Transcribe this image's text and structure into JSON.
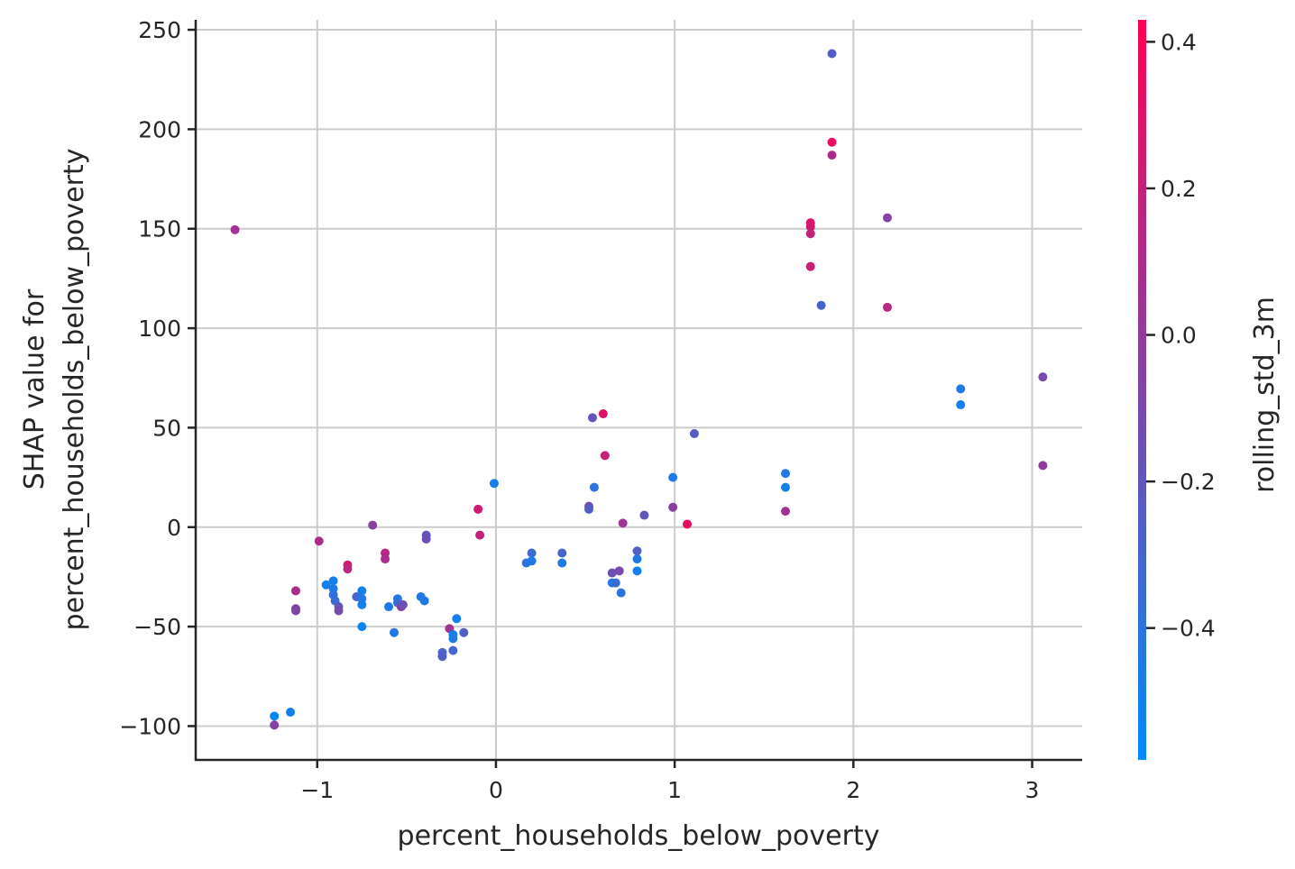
{
  "chart_data": {
    "type": "scatter",
    "title": "",
    "xlabel": "percent_households_below_poverty",
    "ylabel_lines": [
      "SHAP value for",
      "percent_households_below_poverty"
    ],
    "xlim": [
      -1.68,
      3.28
    ],
    "ylim": [
      -117,
      255
    ],
    "x_ticks": [
      -1,
      0,
      1,
      2,
      3
    ],
    "x_tick_labels": [
      "−1",
      "0",
      "1",
      "2",
      "3"
    ],
    "y_ticks": [
      -100,
      -50,
      0,
      50,
      100,
      150,
      200,
      250
    ],
    "y_tick_labels": [
      "−100",
      "−50",
      "0",
      "50",
      "100",
      "150",
      "200",
      "250"
    ],
    "grid": true,
    "colorbar": {
      "label": "rolling_std_3m",
      "range": [
        -0.58,
        0.43
      ],
      "ticks": [
        -0.4,
        -0.2,
        0.0,
        0.2,
        0.4
      ],
      "tick_labels": [
        "−0.4",
        "−0.2",
        "0.0",
        "0.2",
        "0.4"
      ],
      "colors": [
        "#008bfb",
        "#ff0052"
      ]
    },
    "points": [
      {
        "x": -1.46,
        "y": 149.5,
        "c": 0.05
      },
      {
        "x": -1.24,
        "y": -95,
        "c": -0.55
      },
      {
        "x": -1.24,
        "y": -99.5,
        "c": -0.05
      },
      {
        "x": -1.15,
        "y": -93,
        "c": -0.5
      },
      {
        "x": -1.12,
        "y": -32,
        "c": 0.1
      },
      {
        "x": -1.12,
        "y": -41,
        "c": -0.05
      },
      {
        "x": -1.12,
        "y": -42,
        "c": -0.08
      },
      {
        "x": -0.99,
        "y": -7,
        "c": 0.1
      },
      {
        "x": -0.95,
        "y": -29,
        "c": -0.5
      },
      {
        "x": -0.91,
        "y": -27,
        "c": -0.5
      },
      {
        "x": -0.91,
        "y": -31,
        "c": -0.45
      },
      {
        "x": -0.91,
        "y": -34,
        "c": -0.4
      },
      {
        "x": -0.9,
        "y": -37,
        "c": -0.35
      },
      {
        "x": -0.88,
        "y": -40,
        "c": -0.2
      },
      {
        "x": -0.88,
        "y": -42,
        "c": -0.12
      },
      {
        "x": -0.83,
        "y": -19,
        "c": 0.25
      },
      {
        "x": -0.83,
        "y": -21,
        "c": 0.15
      },
      {
        "x": -0.78,
        "y": -35,
        "c": -0.3
      },
      {
        "x": -0.75,
        "y": -32,
        "c": -0.5
      },
      {
        "x": -0.75,
        "y": -36,
        "c": -0.45
      },
      {
        "x": -0.75,
        "y": -39,
        "c": -0.5
      },
      {
        "x": -0.75,
        "y": -50,
        "c": -0.55
      },
      {
        "x": -0.69,
        "y": 1,
        "c": -0.05
      },
      {
        "x": -0.62,
        "y": -13,
        "c": 0.15
      },
      {
        "x": -0.62,
        "y": -16,
        "c": 0.1
      },
      {
        "x": -0.6,
        "y": -40,
        "c": -0.45
      },
      {
        "x": -0.57,
        "y": -53,
        "c": -0.45
      },
      {
        "x": -0.55,
        "y": -36,
        "c": -0.45
      },
      {
        "x": -0.55,
        "y": -38,
        "c": -0.35
      },
      {
        "x": -0.53,
        "y": -40,
        "c": -0.05
      },
      {
        "x": -0.52,
        "y": -39,
        "c": -0.15
      },
      {
        "x": -0.42,
        "y": -35,
        "c": -0.45
      },
      {
        "x": -0.4,
        "y": -37,
        "c": -0.45
      },
      {
        "x": -0.39,
        "y": -4,
        "c": -0.2
      },
      {
        "x": -0.39,
        "y": -6,
        "c": -0.15
      },
      {
        "x": -0.3,
        "y": -63,
        "c": -0.3
      },
      {
        "x": -0.3,
        "y": -65,
        "c": -0.25
      },
      {
        "x": -0.26,
        "y": -51,
        "c": 0.05
      },
      {
        "x": -0.24,
        "y": -54,
        "c": -0.5
      },
      {
        "x": -0.24,
        "y": -56,
        "c": -0.45
      },
      {
        "x": -0.24,
        "y": -62,
        "c": -0.3
      },
      {
        "x": -0.22,
        "y": -46,
        "c": -0.5
      },
      {
        "x": -0.18,
        "y": -53,
        "c": -0.25
      },
      {
        "x": -0.1,
        "y": 9,
        "c": 0.25
      },
      {
        "x": -0.09,
        "y": -4,
        "c": 0.2
      },
      {
        "x": -0.01,
        "y": 22,
        "c": -0.5
      },
      {
        "x": 0.17,
        "y": -18,
        "c": -0.4
      },
      {
        "x": 0.2,
        "y": -13,
        "c": -0.35
      },
      {
        "x": 0.2,
        "y": -17,
        "c": -0.45
      },
      {
        "x": 0.37,
        "y": -13,
        "c": -0.3
      },
      {
        "x": 0.37,
        "y": -18,
        "c": -0.45
      },
      {
        "x": 0.52,
        "y": 10.5,
        "c": -0.1
      },
      {
        "x": 0.52,
        "y": 9,
        "c": -0.25
      },
      {
        "x": 0.54,
        "y": 55,
        "c": -0.2
      },
      {
        "x": 0.55,
        "y": 20,
        "c": -0.4
      },
      {
        "x": 0.6,
        "y": 57,
        "c": 0.3
      },
      {
        "x": 0.61,
        "y": 36,
        "c": 0.2
      },
      {
        "x": 0.65,
        "y": -23,
        "c": -0.15
      },
      {
        "x": 0.65,
        "y": -28,
        "c": -0.45
      },
      {
        "x": 0.67,
        "y": -28,
        "c": -0.35
      },
      {
        "x": 0.69,
        "y": -22,
        "c": -0.1
      },
      {
        "x": 0.7,
        "y": -33,
        "c": -0.4
      },
      {
        "x": 0.71,
        "y": 2,
        "c": 0.05
      },
      {
        "x": 0.79,
        "y": -12,
        "c": -0.25
      },
      {
        "x": 0.79,
        "y": -16,
        "c": -0.45
      },
      {
        "x": 0.79,
        "y": -22,
        "c": -0.5
      },
      {
        "x": 0.83,
        "y": 6,
        "c": -0.2
      },
      {
        "x": 0.99,
        "y": 25,
        "c": -0.45
      },
      {
        "x": 0.99,
        "y": 10,
        "c": -0.05
      },
      {
        "x": 1.07,
        "y": 1.5,
        "c": 0.35
      },
      {
        "x": 1.11,
        "y": 47,
        "c": -0.25
      },
      {
        "x": 1.62,
        "y": 27,
        "c": -0.45
      },
      {
        "x": 1.62,
        "y": 20,
        "c": -0.5
      },
      {
        "x": 1.62,
        "y": 8,
        "c": 0.05
      },
      {
        "x": 1.76,
        "y": 153,
        "c": 0.3
      },
      {
        "x": 1.76,
        "y": 151,
        "c": 0.25
      },
      {
        "x": 1.76,
        "y": 147.5,
        "c": 0.2
      },
      {
        "x": 1.76,
        "y": 131,
        "c": 0.2
      },
      {
        "x": 1.82,
        "y": 111.5,
        "c": -0.3
      },
      {
        "x": 1.88,
        "y": 238,
        "c": -0.25
      },
      {
        "x": 1.88,
        "y": 193.5,
        "c": 0.35
      },
      {
        "x": 1.88,
        "y": 187,
        "c": 0.1
      },
      {
        "x": 2.19,
        "y": 155.5,
        "c": -0.05
      },
      {
        "x": 2.19,
        "y": 110.5,
        "c": 0.15
      },
      {
        "x": 2.6,
        "y": 69.5,
        "c": -0.45
      },
      {
        "x": 2.6,
        "y": 61.5,
        "c": -0.5
      },
      {
        "x": 3.06,
        "y": 75.5,
        "c": -0.1
      },
      {
        "x": 3.06,
        "y": 31,
        "c": 0.0
      }
    ]
  }
}
